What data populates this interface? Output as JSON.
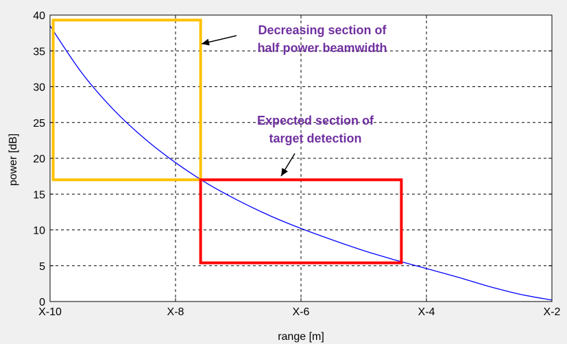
{
  "chart_data": {
    "type": "line",
    "title": "",
    "xlabel": "range [m]",
    "ylabel": "power [dB]",
    "xlim": [
      -10,
      -2
    ],
    "ylim": [
      0,
      40
    ],
    "x_ticks": [
      {
        "value": -10,
        "label": "X-10"
      },
      {
        "value": -8,
        "label": "X-8"
      },
      {
        "value": -6,
        "label": "X-6"
      },
      {
        "value": -4,
        "label": "X-4"
      },
      {
        "value": -2,
        "label": "X-2"
      }
    ],
    "y_ticks": [
      0,
      5,
      10,
      15,
      20,
      25,
      30,
      35,
      40
    ],
    "grid": true,
    "grid_style": "dashed",
    "series": [
      {
        "color": "#0000ff",
        "x": [
          -10,
          -9.5,
          -9,
          -8.5,
          -8,
          -7.5,
          -7,
          -6.5,
          -6,
          -5.5,
          -5,
          -4.5,
          -4,
          -3.5,
          -3,
          -2.5,
          -2
        ],
        "y": [
          38.5,
          32.0,
          26.9,
          22.8,
          19.4,
          16.5,
          14.1,
          12.0,
          10.2,
          8.6,
          7.1,
          5.8,
          4.6,
          3.4,
          2.1,
          1.0,
          0.2
        ]
      }
    ],
    "annotations": [
      {
        "text_lines": [
          "Decreasing section of",
          "half power beamwidth"
        ],
        "color": "#7030a0",
        "box": {
          "x0": -9.95,
          "x1": -7.6,
          "y0": 17,
          "y1": 39.3,
          "color": "#ffc000"
        }
      },
      {
        "text_lines": [
          "Expected section of",
          "target detection"
        ],
        "color": "#7030a0",
        "box": {
          "x0": -7.6,
          "x1": -4.4,
          "y0": 5.4,
          "y1": 17,
          "color": "#ff0000"
        }
      }
    ]
  }
}
